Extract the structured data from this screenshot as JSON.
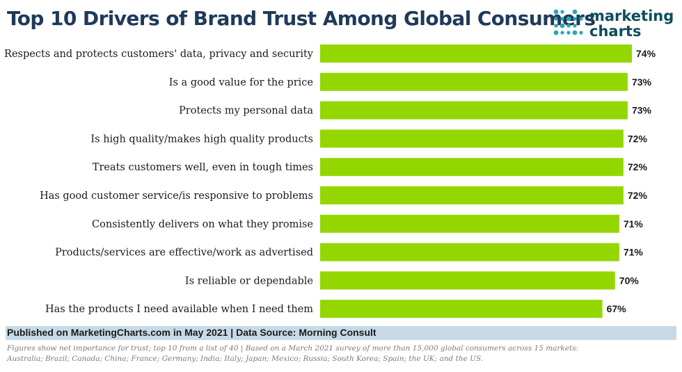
{
  "title": "Top 10 Drivers of Brand Trust Among Global Consumers",
  "logo": {
    "line1": "marketing",
    "line2": "charts",
    "icon": "dot-grid-icon"
  },
  "colors": {
    "bar": "#94d700",
    "title": "#1f3a5a",
    "footer_band": "#c7d9e7",
    "logo_dots": "#2aa6b3"
  },
  "chart_data": {
    "type": "bar",
    "orientation": "horizontal",
    "categories": [
      "Respects and protects customers' data, privacy and security",
      "Is a good value for the price",
      "Protects my personal data",
      "Is high quality/makes high quality products",
      "Treats customers well, even in tough times",
      "Has good customer service/is responsive to problems",
      "Consistently delivers on what they promise",
      "Products/services are effective/work as advertised",
      "Is reliable or dependable",
      "Has the products I need available when I need them"
    ],
    "values": [
      74,
      73,
      73,
      72,
      72,
      72,
      71,
      71,
      70,
      67
    ],
    "data_labels": [
      "74%",
      "73%",
      "73%",
      "72%",
      "72%",
      "72%",
      "71%",
      "71%",
      "70%",
      "67%"
    ],
    "unit": "%",
    "xlim": [
      0,
      74
    ],
    "grid": false,
    "legend": "none",
    "title": "Top 10 Drivers of Brand Trust Among Global Consumers"
  },
  "footer": {
    "source": "Published on MarketingCharts.com in May 2021 | Data Source: Morning Consult",
    "note_line1": "Figures show net importance for trust; top 10 from a list of 40 | Based on a March 2021 survey of more than 15,000 global consumers across 15 markets:",
    "note_line2": "Australia; Brazil; Canada; China; France; Germany; India; Italy; Japan; Mexico; Russia; South Korea; Spain; the UK; and the US."
  }
}
